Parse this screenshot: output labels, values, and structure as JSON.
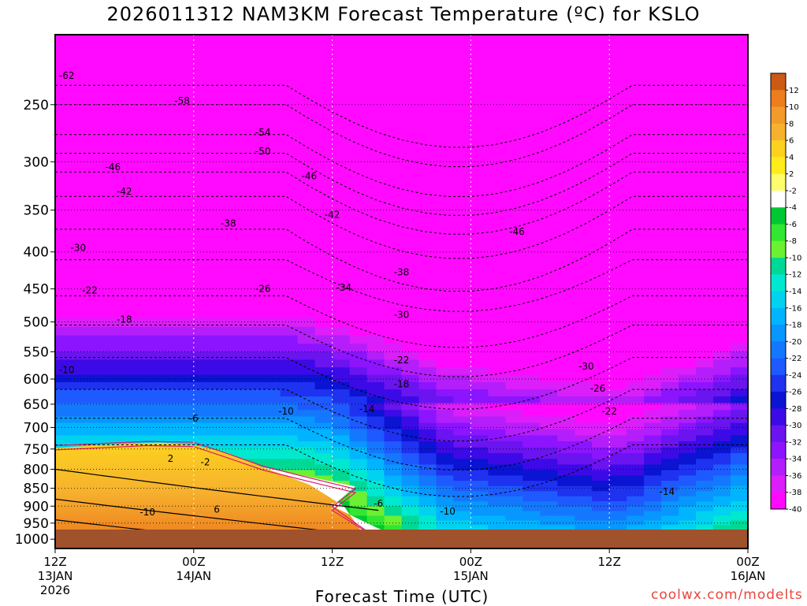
{
  "title": "2026011312 NAM3KM Forecast Temperature (ºC) for KSLO",
  "watermark": "coolwx.com/modelts",
  "chart_data": {
    "type": "heatmap",
    "title": "2026011312 NAM3KM Forecast Temperature (ºC) for KSLO",
    "xlabel": "Forecast Time (UTC)",
    "ylabel": "",
    "y_axis": {
      "log_scale": true,
      "inverted": true,
      "ylim": [
        1030,
        200
      ]
    },
    "y_ticks": [
      250,
      300,
      350,
      400,
      450,
      500,
      550,
      600,
      650,
      700,
      750,
      800,
      850,
      900,
      950,
      1000
    ],
    "x_ticks": [
      {
        "hour": 0,
        "label": "12Z",
        "sub": "13JAN",
        "sub2": "2026"
      },
      {
        "hour": 12,
        "label": "00Z",
        "sub": "14JAN",
        "sub2": ""
      },
      {
        "hour": 24,
        "label": "12Z",
        "sub": "",
        "sub2": ""
      },
      {
        "hour": 36,
        "label": "00Z",
        "sub": "15JAN",
        "sub2": ""
      },
      {
        "hour": 48,
        "label": "12Z",
        "sub": "",
        "sub2": ""
      },
      {
        "hour": 60,
        "label": "00Z",
        "sub": "16JAN",
        "sub2": ""
      }
    ],
    "grid": true,
    "colorbar": {
      "placement": "right",
      "labels": [
        "12",
        "10",
        "8",
        "6",
        "4",
        "2",
        "-2",
        "-4",
        "-6",
        "-8",
        "-10",
        "-12",
        "-14",
        "-16",
        "-18",
        "-20",
        "-22",
        "-24",
        "-26",
        "-28",
        "-30",
        "-32",
        "-34",
        "-36",
        "-38",
        "-40"
      ],
      "colors": [
        "#cc5a14",
        "#ee7d1e",
        "#f29a2a",
        "#f6b22e",
        "#fcd21e",
        "#ffec19",
        "#fffc6c",
        "#ffffff",
        "#00c832",
        "#32e632",
        "#6cf032",
        "#00d896",
        "#00e8d0",
        "#00d2f0",
        "#00b4ff",
        "#0896ff",
        "#1478ff",
        "#1e5aff",
        "#1e32f0",
        "#0a14d2",
        "#3c0ae6",
        "#6a14f0",
        "#8c14ff",
        "#b41efa",
        "#dc1efa",
        "#ff0aff"
      ]
    },
    "isotherms": [
      {
        "label": "-62",
        "hour": 1,
        "p": 228
      },
      {
        "label": "-58",
        "hour": 11,
        "p": 247
      },
      {
        "label": "-54",
        "hour": 18,
        "p": 273
      },
      {
        "label": "-50",
        "hour": 18,
        "p": 290
      },
      {
        "label": "-46",
        "hour": 5,
        "p": 305
      },
      {
        "label": "-46",
        "hour": 22,
        "p": 314
      },
      {
        "label": "-46",
        "hour": 40,
        "p": 375
      },
      {
        "label": "-42",
        "hour": 6,
        "p": 330
      },
      {
        "label": "-42",
        "hour": 24,
        "p": 355
      },
      {
        "label": "-38",
        "hour": 15,
        "p": 365
      },
      {
        "label": "-38",
        "hour": 30,
        "p": 427
      },
      {
        "label": "-34",
        "hour": 25,
        "p": 448
      },
      {
        "label": "-30",
        "hour": 2,
        "p": 395
      },
      {
        "label": "-30",
        "hour": 30,
        "p": 489
      },
      {
        "label": "-30",
        "hour": 46,
        "p": 576
      },
      {
        "label": "-26",
        "hour": 18,
        "p": 450
      },
      {
        "label": "-26",
        "hour": 47,
        "p": 618
      },
      {
        "label": "-22",
        "hour": 3,
        "p": 452
      },
      {
        "label": "-22",
        "hour": 30,
        "p": 565
      },
      {
        "label": "-22",
        "hour": 48,
        "p": 665
      },
      {
        "label": "-18",
        "hour": 6,
        "p": 496
      },
      {
        "label": "-18",
        "hour": 30,
        "p": 610
      },
      {
        "label": "-14",
        "hour": 27,
        "p": 660
      },
      {
        "label": "-14",
        "hour": 53,
        "p": 860
      },
      {
        "label": "-10",
        "hour": 1,
        "p": 583
      },
      {
        "label": "-10",
        "hour": 20,
        "p": 665
      },
      {
        "label": "-10",
        "hour": 34,
        "p": 915
      },
      {
        "label": "-10",
        "hour": 8,
        "p": 918
      },
      {
        "label": "-6",
        "hour": 12,
        "p": 680
      },
      {
        "label": "-6",
        "hour": 28,
        "p": 892
      },
      {
        "label": "-2",
        "hour": 13,
        "p": 782
      },
      {
        "label": "2",
        "hour": 10,
        "p": 773
      },
      {
        "label": "6",
        "hour": 14,
        "p": 910
      }
    ]
  }
}
